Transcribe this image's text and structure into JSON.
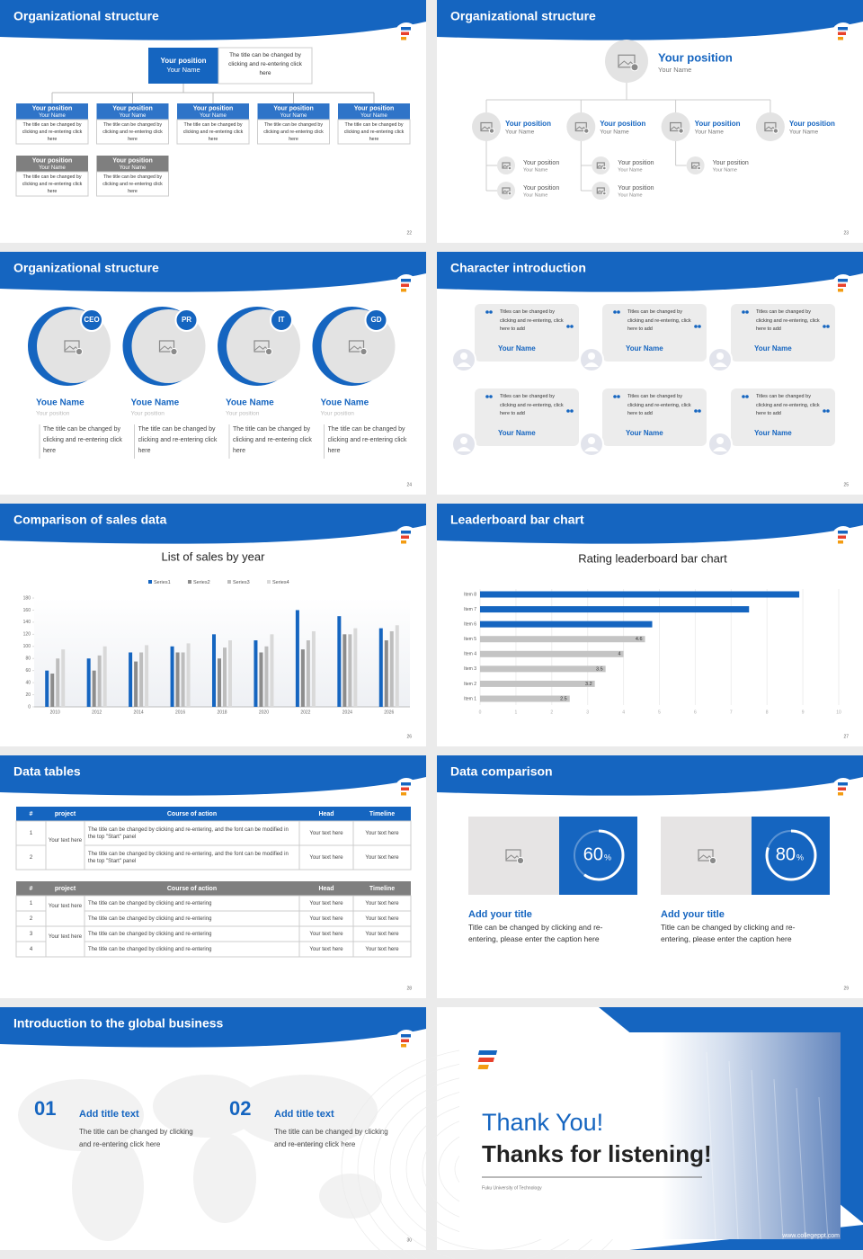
{
  "slides": [
    {
      "kind": "org-chart",
      "title": "Organizational structure",
      "page": "22",
      "head": {
        "position": "Your position",
        "name": "Your Name",
        "note": "The title can be changed by clicking and re-entering click here",
        "color": "#1565c0"
      },
      "members": [
        {
          "position": "Your position",
          "name": "Your Name",
          "text": "The title can be changed by clicking and re-entering click here",
          "color": "#2f74c8"
        },
        {
          "position": "Your position",
          "name": "Your Name",
          "text": "The title can be changed by clicking and re-entering click here",
          "color": "#2f74c8"
        },
        {
          "position": "Your position",
          "name": "Your Name",
          "text": "The title can be changed by clicking and re-entering click here",
          "color": "#2f74c8"
        },
        {
          "position": "Your position",
          "name": "Your Name",
          "text": "The title can be changed by clicking and re-entering click here",
          "color": "#2f74c8"
        },
        {
          "position": "Your position",
          "name": "Your Name",
          "text": "The title can be changed by clicking and re-entering click here",
          "color": "#2f74c8"
        },
        {
          "position": "Your position",
          "name": "Your Name",
          "text": "The title can be changed by clicking and re-entering click here",
          "color": "#7f7f7f"
        },
        {
          "position": "Your position",
          "name": "Your Name",
          "text": "The title can be changed by clicking and re-entering click here",
          "color": "#7f7f7f"
        }
      ]
    },
    {
      "kind": "org-tree",
      "title": "Organizational structure",
      "page": "23",
      "head": {
        "position": "Your position",
        "name": "Your Name"
      },
      "branches": [
        {
          "position": "Your position",
          "name": "Your Name",
          "children": [
            {
              "position": "Your position",
              "name": "Your Name"
            },
            {
              "position": "Your position",
              "name": "Your Name"
            }
          ]
        },
        {
          "position": "Your position",
          "name": "Your Name",
          "children": [
            {
              "position": "Your position",
              "name": "Your Name"
            },
            {
              "position": "Your position",
              "name": "Your Name"
            }
          ]
        },
        {
          "position": "Your position",
          "name": "Your Name",
          "children": [
            {
              "position": "Your position",
              "name": "Your Name"
            }
          ]
        },
        {
          "position": "Your position",
          "name": "Your Name",
          "children": []
        }
      ]
    },
    {
      "kind": "team",
      "title": "Organizational structure",
      "page": "24",
      "members": [
        {
          "tag": "CEO",
          "name": "Youe Name",
          "position": "Your position",
          "text": "The title can be changed by clicking and re-entering click here"
        },
        {
          "tag": "PR",
          "name": "Youe Name",
          "position": "Your position",
          "text": "The title can be changed by clicking and re-entering click here"
        },
        {
          "tag": "IT",
          "name": "Youe Name",
          "position": "Your position",
          "text": "The title can be changed by clicking and re-entering click here"
        },
        {
          "tag": "GD",
          "name": "Youe Name",
          "position": "Your position",
          "text": "The title can be changed by clicking and re-entering click here"
        }
      ]
    },
    {
      "kind": "testimonials",
      "title": "Character introduction",
      "page": "25",
      "cards": [
        {
          "quote": "Titles can be changed by clicking and re-entering, click here to add",
          "name": "Your Name"
        },
        {
          "quote": "Titles can be changed by clicking and re-entering, click here to add",
          "name": "Your Name"
        },
        {
          "quote": "Titles can be changed by clicking and re-entering, click here to add",
          "name": "Your Name"
        },
        {
          "quote": "Titles can be changed by clicking and re-entering, click here to add",
          "name": "Your Name"
        },
        {
          "quote": "Titles can be changed by clicking and re-entering, click here to add",
          "name": "Your Name"
        },
        {
          "quote": "Titles can be changed by clicking and re-entering, click here to add",
          "name": "Your Name"
        }
      ]
    },
    {
      "kind": "column-chart",
      "title": "Comparison of sales data",
      "page": "26",
      "chart": {
        "type": "bar",
        "title": "List of sales by year",
        "categories": [
          "2010",
          "2012",
          "2014",
          "2016",
          "2018",
          "2020",
          "2022",
          "2024",
          "2026"
        ],
        "series": [
          {
            "name": "Series1",
            "color": "#1565c0",
            "values": [
              60,
              80,
              90,
              100,
              120,
              110,
              160,
              150,
              130
            ]
          },
          {
            "name": "Series2",
            "color": "#8c8c8c",
            "values": [
              55,
              60,
              75,
              90,
              80,
              90,
              95,
              120,
              110
            ]
          },
          {
            "name": "Series3",
            "color": "#bdbdbd",
            "values": [
              80,
              85,
              90,
              90,
              98,
              100,
              110,
              120,
              125
            ]
          },
          {
            "name": "Series4",
            "color": "#d9d9d9",
            "values": [
              95,
              100,
              102,
              105,
              110,
              120,
              125,
              130,
              135
            ]
          }
        ],
        "ylim": [
          0,
          180
        ],
        "yticks": [
          0,
          20,
          40,
          60,
          80,
          100,
          120,
          140,
          160,
          180
        ]
      }
    },
    {
      "kind": "leaderboard",
      "title": "Leaderboard bar chart",
      "page": "27",
      "chart": {
        "type": "bar",
        "orientation": "horizontal",
        "title": "Rating leaderboard bar chart",
        "categories": [
          "Item 1",
          "Item 2",
          "Item 3",
          "Item 4",
          "Item 5",
          "Item 6",
          "Item 7",
          "Item 8"
        ],
        "values": [
          2.5,
          3.2,
          3.5,
          4,
          4.6,
          4.8,
          7.5,
          8.9
        ],
        "value_labels": [
          "2.5",
          "3.2",
          "3.5",
          "4",
          "4.6",
          null,
          null,
          null
        ],
        "colors": [
          "#c4c4c4",
          "#c4c4c4",
          "#c4c4c4",
          "#c4c4c4",
          "#c4c4c4",
          "#1565c0",
          "#1565c0",
          "#1565c0"
        ],
        "xlim": [
          0,
          10
        ],
        "xticks": [
          0,
          1,
          2,
          3,
          4,
          5,
          6,
          7,
          8,
          9,
          10
        ],
        "grid": true
      }
    },
    {
      "kind": "tables",
      "title": "Data tables",
      "page": "28",
      "tables": [
        {
          "header_color": "#1565c0",
          "columns": [
            "#",
            "project",
            "Course of action",
            "Head",
            "Timeline"
          ],
          "groups": [
            {
              "project": "Your text here",
              "rows": [
                {
                  "number": "1",
                  "action": "The title can be changed by clicking and re-entering, and the font can be modified in the top \"Start\" panel",
                  "head": "Your text here",
                  "timeline": "Your text here"
                },
                {
                  "number": "2",
                  "action": "The title can be changed by clicking and re-entering, and the font can be modified in the top \"Start\" panel",
                  "head": "Your text here",
                  "timeline": "Your text here"
                }
              ]
            }
          ]
        },
        {
          "header_color": "#7f7f7f",
          "columns": [
            "#",
            "project",
            "Course of action",
            "Head",
            "Timeline"
          ],
          "groups": [
            {
              "project": "Your text here",
              "rows": [
                {
                  "number": "1",
                  "action": "The title can be changed by clicking and re-entering",
                  "head": "Your text here",
                  "timeline": "Your text here"
                },
                {
                  "number": "2",
                  "action": "The title can be changed by clicking and re-entering",
                  "head": "Your text here",
                  "timeline": "Your text here"
                }
              ]
            },
            {
              "project": "Your text here",
              "rows": [
                {
                  "number": "3",
                  "action": "The title can be changed by clicking and re-entering",
                  "head": "Your text here",
                  "timeline": "Your text here"
                },
                {
                  "number": "4",
                  "action": "The title can be changed by clicking and re-entering",
                  "head": "Your text here",
                  "timeline": "Your text here"
                }
              ]
            }
          ]
        }
      ]
    },
    {
      "kind": "comparison",
      "title": "Data comparison",
      "page": "29",
      "items": [
        {
          "percent": 60,
          "unit": "%",
          "title": "Add your title",
          "text": "Title can be changed by clicking and re-entering, please enter the caption here"
        },
        {
          "percent": 80,
          "unit": "%",
          "title": "Add your title",
          "text": "Title can be changed by clicking and re-entering, please enter the caption here"
        }
      ]
    },
    {
      "kind": "global",
      "title": "Introduction to the global business",
      "page": "30",
      "items": [
        {
          "number": "01",
          "title": "Add title text",
          "text": "The title can be changed by clicking and re-entering click here"
        },
        {
          "number": "02",
          "title": "Add title text",
          "text": "The title can be changed by clicking and re-entering click here"
        }
      ]
    },
    {
      "kind": "closing",
      "heading": "Thank You!",
      "subheading": "Thanks for listening!",
      "institution": "Fuku University of Technology",
      "website": "www.collegeppt.com"
    }
  ]
}
